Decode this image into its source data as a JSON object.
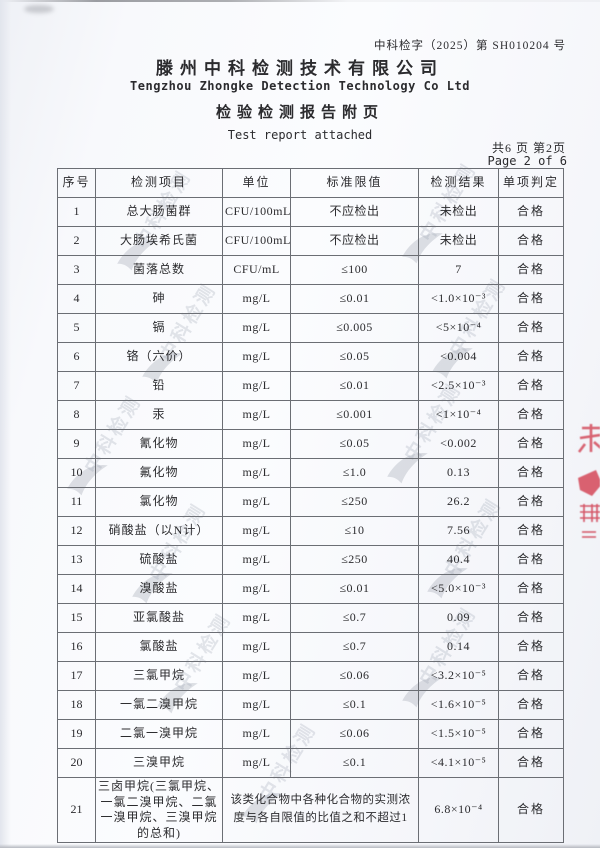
{
  "meta": {
    "doc_number": "中科检字（2025）第 SH010204 号",
    "company_cn": "滕州中科检测技术有限公司",
    "company_en": "Tengzhou Zhongke Detection Technology Co Ltd",
    "title_cn": "检验检测报告附页",
    "title_en": "Test report attached",
    "page_info_cn": "共6 页 第2页",
    "page_info_en": "Page 2 of 6"
  },
  "watermark": {
    "text": "中科检测"
  },
  "colors": {
    "paper": "#f8f9fc",
    "table_border": "#6b6e74",
    "text": "#2b2b2e",
    "watermark_gray": "#98a0ac",
    "stamp_red": "#cf3a4c"
  },
  "table": {
    "headers": [
      "序号",
      "检测项目",
      "单位",
      "标准限值",
      "检测结果",
      "单项判定"
    ],
    "rows": [
      {
        "no": "1",
        "item": "总大肠菌群",
        "unit": "CFU/100mL",
        "limit": "不应检出",
        "result": "未检出",
        "verdict": "合格"
      },
      {
        "no": "2",
        "item": "大肠埃希氏菌",
        "unit": "CFU/100mL",
        "limit": "不应检出",
        "result": "未检出",
        "verdict": "合格"
      },
      {
        "no": "3",
        "item": "菌落总数",
        "unit": "CFU/mL",
        "limit": "≤100",
        "result": "7",
        "verdict": "合格"
      },
      {
        "no": "4",
        "item": "砷",
        "unit": "mg/L",
        "limit": "≤0.01",
        "result": "<1.0×10⁻³",
        "verdict": "合格"
      },
      {
        "no": "5",
        "item": "镉",
        "unit": "mg/L",
        "limit": "≤0.005",
        "result": "<5×10⁻⁴",
        "verdict": "合格"
      },
      {
        "no": "6",
        "item": "铬（六价）",
        "unit": "mg/L",
        "limit": "≤0.05",
        "result": "<0.004",
        "verdict": "合格"
      },
      {
        "no": "7",
        "item": "铅",
        "unit": "mg/L",
        "limit": "≤0.01",
        "result": "<2.5×10⁻³",
        "verdict": "合格"
      },
      {
        "no": "8",
        "item": "汞",
        "unit": "mg/L",
        "limit": "≤0.001",
        "result": "<1×10⁻⁴",
        "verdict": "合格"
      },
      {
        "no": "9",
        "item": "氰化物",
        "unit": "mg/L",
        "limit": "≤0.05",
        "result": "<0.002",
        "verdict": "合格"
      },
      {
        "no": "10",
        "item": "氟化物",
        "unit": "mg/L",
        "limit": "≤1.0",
        "result": "0.13",
        "verdict": "合格"
      },
      {
        "no": "11",
        "item": "氯化物",
        "unit": "mg/L",
        "limit": "≤250",
        "result": "26.2",
        "verdict": "合格"
      },
      {
        "no": "12",
        "item": "硝酸盐（以N计）",
        "unit": "mg/L",
        "limit": "≤10",
        "result": "7.56",
        "verdict": "合格"
      },
      {
        "no": "13",
        "item": "硫酸盐",
        "unit": "mg/L",
        "limit": "≤250",
        "result": "40.4",
        "verdict": "合格"
      },
      {
        "no": "14",
        "item": "溴酸盐",
        "unit": "mg/L",
        "limit": "≤0.01",
        "result": "<5.0×10⁻³",
        "verdict": "合格"
      },
      {
        "no": "15",
        "item": "亚氯酸盐",
        "unit": "mg/L",
        "limit": "≤0.7",
        "result": "0.09",
        "verdict": "合格"
      },
      {
        "no": "16",
        "item": "氯酸盐",
        "unit": "mg/L",
        "limit": "≤0.7",
        "result": "0.14",
        "verdict": "合格"
      },
      {
        "no": "17",
        "item": "三氯甲烷",
        "unit": "mg/L",
        "limit": "≤0.06",
        "result": "<3.2×10⁻⁵",
        "verdict": "合格"
      },
      {
        "no": "18",
        "item": "一氯二溴甲烷",
        "unit": "mg/L",
        "limit": "≤0.1",
        "result": "<1.6×10⁻⁵",
        "verdict": "合格"
      },
      {
        "no": "19",
        "item": "二氯一溴甲烷",
        "unit": "mg/L",
        "limit": "≤0.06",
        "result": "<1.5×10⁻⁵",
        "verdict": "合格"
      },
      {
        "no": "20",
        "item": "三溴甲烷",
        "unit": "mg/L",
        "limit": "≤0.1",
        "result": "<4.1×10⁻⁵",
        "verdict": "合格"
      },
      {
        "no": "21",
        "item": "三卤甲烷(三氯甲烷、一氯二溴甲烷、二氯一溴甲烷、三溴甲烷的总和)",
        "span_text": "该类化合物中各种化合物的实测浓度与各自限值的比值之和不超过1",
        "result": "6.8×10⁻⁴",
        "verdict": "合格"
      }
    ]
  }
}
